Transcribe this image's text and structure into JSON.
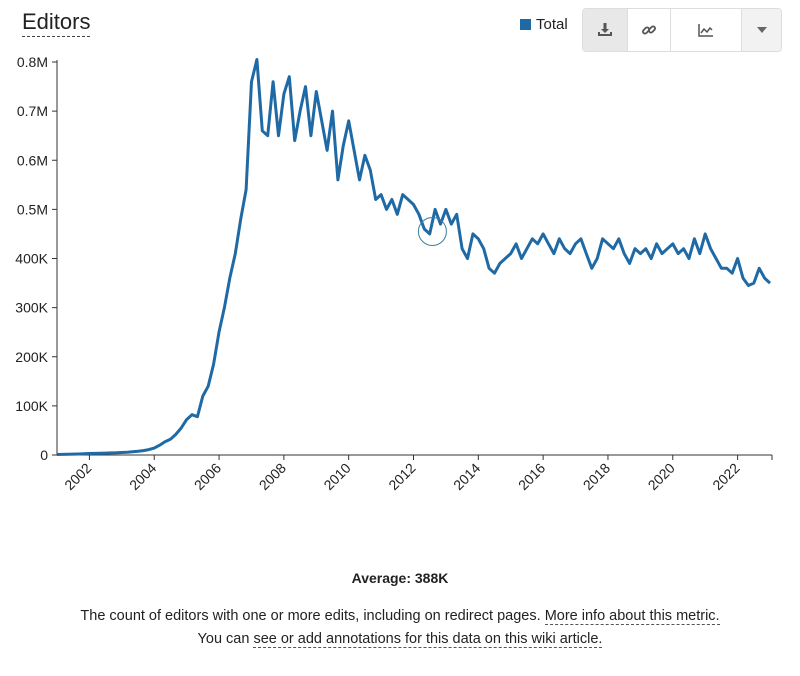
{
  "header": {
    "title": "Editors"
  },
  "legend": {
    "items": [
      {
        "label": "Total",
        "color": "#1f6aa5"
      }
    ]
  },
  "toolbar": {
    "buttons": [
      {
        "name": "download-button",
        "icon": "download-icon",
        "active": true
      },
      {
        "name": "link-button",
        "icon": "link-icon"
      },
      {
        "name": "chart-type-button",
        "icon": "line-chart-icon"
      },
      {
        "name": "dropdown-button",
        "icon": "caret-down-icon"
      }
    ]
  },
  "chart_data": {
    "type": "line",
    "title": "Editors",
    "xlabel": "",
    "ylabel": "",
    "xlim": [
      "2001-01",
      "2023-01"
    ],
    "ylim": [
      0,
      800000
    ],
    "yticks": [
      {
        "v": 0,
        "label": "0"
      },
      {
        "v": 100000,
        "label": "100K"
      },
      {
        "v": 200000,
        "label": "200K"
      },
      {
        "v": 300000,
        "label": "300K"
      },
      {
        "v": 400000,
        "label": "400K"
      },
      {
        "v": 500000,
        "label": "0.5M"
      },
      {
        "v": 600000,
        "label": "0.6M"
      },
      {
        "v": 700000,
        "label": "0.7M"
      },
      {
        "v": 800000,
        "label": "0.8M"
      }
    ],
    "xticks": [
      "2002",
      "2004",
      "2006",
      "2008",
      "2010",
      "2012",
      "2014",
      "2016",
      "2018",
      "2020",
      "2022"
    ],
    "grid": false,
    "legend_position": "top-right",
    "color": "#1f6aa5",
    "highlight": {
      "x": "2012-08",
      "y": 455000
    },
    "series": [
      {
        "name": "Total",
        "points": [
          [
            "2001-01",
            1000
          ],
          [
            "2001-03",
            1200
          ],
          [
            "2001-05",
            1500
          ],
          [
            "2001-07",
            1800
          ],
          [
            "2001-09",
            2000
          ],
          [
            "2001-11",
            2500
          ],
          [
            "2002-01",
            3000
          ],
          [
            "2002-03",
            3200
          ],
          [
            "2002-05",
            3500
          ],
          [
            "2002-07",
            3800
          ],
          [
            "2002-09",
            4200
          ],
          [
            "2002-11",
            4500
          ],
          [
            "2003-01",
            5000
          ],
          [
            "2003-03",
            5500
          ],
          [
            "2003-05",
            6500
          ],
          [
            "2003-07",
            7500
          ],
          [
            "2003-09",
            9000
          ],
          [
            "2003-11",
            11000
          ],
          [
            "2004-01",
            14000
          ],
          [
            "2004-03",
            20000
          ],
          [
            "2004-05",
            27000
          ],
          [
            "2004-07",
            32000
          ],
          [
            "2004-09",
            42000
          ],
          [
            "2004-11",
            55000
          ],
          [
            "2005-01",
            72000
          ],
          [
            "2005-03",
            82000
          ],
          [
            "2005-05",
            78000
          ],
          [
            "2005-07",
            120000
          ],
          [
            "2005-09",
            140000
          ],
          [
            "2005-11",
            185000
          ],
          [
            "2006-01",
            250000
          ],
          [
            "2006-03",
            300000
          ],
          [
            "2006-05",
            360000
          ],
          [
            "2006-07",
            410000
          ],
          [
            "2006-09",
            480000
          ],
          [
            "2006-11",
            540000
          ],
          [
            "2007-01",
            760000
          ],
          [
            "2007-03",
            805000
          ],
          [
            "2007-05",
            660000
          ],
          [
            "2007-07",
            650000
          ],
          [
            "2007-09",
            760000
          ],
          [
            "2007-11",
            650000
          ],
          [
            "2008-01",
            735000
          ],
          [
            "2008-03",
            770000
          ],
          [
            "2008-05",
            640000
          ],
          [
            "2008-07",
            700000
          ],
          [
            "2008-09",
            750000
          ],
          [
            "2008-11",
            650000
          ],
          [
            "2009-01",
            740000
          ],
          [
            "2009-03",
            680000
          ],
          [
            "2009-05",
            620000
          ],
          [
            "2009-07",
            700000
          ],
          [
            "2009-09",
            560000
          ],
          [
            "2009-11",
            630000
          ],
          [
            "2010-01",
            680000
          ],
          [
            "2010-03",
            620000
          ],
          [
            "2010-05",
            560000
          ],
          [
            "2010-07",
            610000
          ],
          [
            "2010-09",
            580000
          ],
          [
            "2010-11",
            520000
          ],
          [
            "2011-01",
            530000
          ],
          [
            "2011-03",
            500000
          ],
          [
            "2011-05",
            520000
          ],
          [
            "2011-07",
            490000
          ],
          [
            "2011-09",
            530000
          ],
          [
            "2011-11",
            520000
          ],
          [
            "2012-01",
            510000
          ],
          [
            "2012-03",
            490000
          ],
          [
            "2012-05",
            460000
          ],
          [
            "2012-07",
            450000
          ],
          [
            "2012-09",
            500000
          ],
          [
            "2012-11",
            470000
          ],
          [
            "2013-01",
            500000
          ],
          [
            "2013-03",
            470000
          ],
          [
            "2013-05",
            490000
          ],
          [
            "2013-07",
            420000
          ],
          [
            "2013-09",
            400000
          ],
          [
            "2013-11",
            450000
          ],
          [
            "2014-01",
            440000
          ],
          [
            "2014-03",
            420000
          ],
          [
            "2014-05",
            380000
          ],
          [
            "2014-07",
            370000
          ],
          [
            "2014-09",
            390000
          ],
          [
            "2014-11",
            400000
          ],
          [
            "2015-01",
            410000
          ],
          [
            "2015-03",
            430000
          ],
          [
            "2015-05",
            400000
          ],
          [
            "2015-07",
            420000
          ],
          [
            "2015-09",
            440000
          ],
          [
            "2015-11",
            430000
          ],
          [
            "2016-01",
            450000
          ],
          [
            "2016-03",
            430000
          ],
          [
            "2016-05",
            410000
          ],
          [
            "2016-07",
            440000
          ],
          [
            "2016-09",
            420000
          ],
          [
            "2016-11",
            410000
          ],
          [
            "2017-01",
            430000
          ],
          [
            "2017-03",
            440000
          ],
          [
            "2017-05",
            410000
          ],
          [
            "2017-07",
            380000
          ],
          [
            "2017-09",
            400000
          ],
          [
            "2017-11",
            440000
          ],
          [
            "2018-01",
            430000
          ],
          [
            "2018-03",
            420000
          ],
          [
            "2018-05",
            440000
          ],
          [
            "2018-07",
            410000
          ],
          [
            "2018-09",
            390000
          ],
          [
            "2018-11",
            420000
          ],
          [
            "2019-01",
            410000
          ],
          [
            "2019-03",
            420000
          ],
          [
            "2019-05",
            400000
          ],
          [
            "2019-07",
            430000
          ],
          [
            "2019-09",
            410000
          ],
          [
            "2019-11",
            420000
          ],
          [
            "2020-01",
            430000
          ],
          [
            "2020-03",
            410000
          ],
          [
            "2020-05",
            420000
          ],
          [
            "2020-07",
            400000
          ],
          [
            "2020-09",
            440000
          ],
          [
            "2020-11",
            410000
          ],
          [
            "2021-01",
            450000
          ],
          [
            "2021-03",
            420000
          ],
          [
            "2021-05",
            400000
          ],
          [
            "2021-07",
            380000
          ],
          [
            "2021-09",
            380000
          ],
          [
            "2021-11",
            370000
          ],
          [
            "2022-01",
            400000
          ],
          [
            "2022-03",
            360000
          ],
          [
            "2022-05",
            345000
          ],
          [
            "2022-07",
            350000
          ],
          [
            "2022-09",
            380000
          ],
          [
            "2022-11",
            360000
          ],
          [
            "2023-01",
            350000
          ]
        ]
      }
    ]
  },
  "footer": {
    "average": "Average: 388K",
    "line1_text": "The count of editors with one or more edits, including on redirect pages. ",
    "line1_link": "More info about this metric.",
    "line2_prefix": "You can ",
    "line2_link": "see or add annotations for this data on this wiki article."
  }
}
